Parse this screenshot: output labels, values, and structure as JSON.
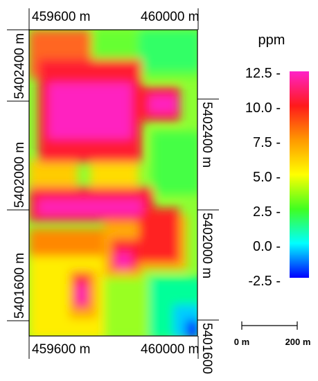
{
  "map": {
    "top_x_labels": [
      "459600 m",
      "460000 m"
    ],
    "bottom_x_labels": [
      "459600 m",
      "460000 m"
    ],
    "left_y_labels": [
      "5402400 m",
      "5402000 m",
      "5401600 m"
    ],
    "right_y_labels": [
      "5402400 m",
      "5402000 m",
      "5401600"
    ]
  },
  "legend": {
    "unit": "ppm",
    "ticks": [
      "12.5 -",
      "10.0 -",
      "7.5 -",
      "5.0 -",
      "2.5 -",
      "0.0 -",
      "-2.5 -"
    ],
    "colors": [
      "#ff22c8",
      "#ff1a1a",
      "#ff9900",
      "#ffff00",
      "#40ff20",
      "#00ffff",
      "#0000ff"
    ]
  },
  "scalebar": {
    "start_label": "0 m",
    "end_label": "200 m"
  }
}
